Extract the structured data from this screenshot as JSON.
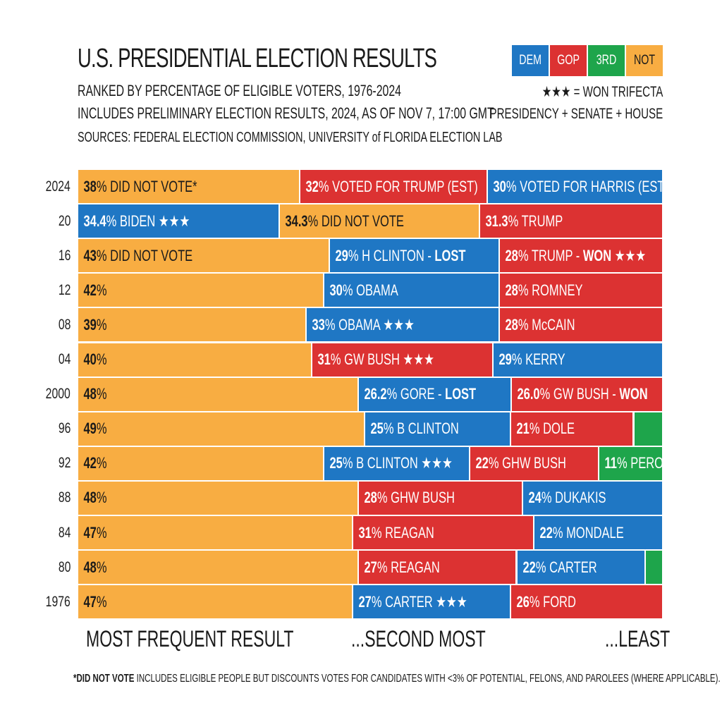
{
  "header": {
    "title": "U.S. PRESIDENTIAL ELECTION RESULTS",
    "subtitle1": "RANKED BY PERCENTAGE OF ELIGIBLE VOTERS, 1976-2024",
    "subtitle2": "INCLUDES PRELIMINARY ELECTION RESULTS, 2024, AS OF NOV 7, 17:00 GMT",
    "sources": "SOURCES: FEDERAL ELECTION COMMISSION, UNIVERSITY of FLORIDA ELECTION LAB"
  },
  "legend": {
    "items": [
      {
        "label": "DEM",
        "color": "#1f77c4"
      },
      {
        "label": "GOP",
        "color": "#dc3232"
      },
      {
        "label": "3RD",
        "color": "#1ea54b"
      },
      {
        "label": "NOT",
        "color": "#f8ad42"
      }
    ],
    "trifecta_line1": "★★★ = WON TRIFECTA",
    "trifecta_line2": "PRESIDENCY + SENATE + HOUSE"
  },
  "colors": {
    "DEM": "#1f77c4",
    "GOP": "#dc3232",
    "3RD": "#1ea54b",
    "NOT": "#f8ad42"
  },
  "chart_data": {
    "type": "bar",
    "orientation": "horizontal-stacked",
    "rows": [
      {
        "year": "2024",
        "segments": [
          {
            "party": "NOT",
            "value": 38,
            "pct": "38",
            "label": "% DID NOT VOTE*"
          },
          {
            "party": "GOP",
            "value": 32,
            "pct": "32",
            "label": "% VOTED FOR TRUMP (EST)"
          },
          {
            "party": "DEM",
            "value": 30,
            "pct": "30",
            "label": "% VOTED FOR HARRIS (EST)"
          }
        ]
      },
      {
        "year": "20",
        "segments": [
          {
            "party": "DEM",
            "value": 34.4,
            "pct": "34.4",
            "label": "% BIDEN ★★★"
          },
          {
            "party": "NOT",
            "value": 34.3,
            "pct": "34.3",
            "label": "% DID NOT VOTE"
          },
          {
            "party": "GOP",
            "value": 31.3,
            "pct": "31.3",
            "label": "% TRUMP"
          }
        ]
      },
      {
        "year": "16",
        "segments": [
          {
            "party": "NOT",
            "value": 43,
            "pct": "43",
            "label": "% DID NOT VOTE"
          },
          {
            "party": "DEM",
            "value": 29,
            "pct": "29",
            "label": "% H CLINTON - ",
            "bold": "LOST"
          },
          {
            "party": "GOP",
            "value": 28,
            "pct": "28",
            "label": "% TRUMP - ",
            "bold": "WON",
            "after": " ★★★"
          }
        ]
      },
      {
        "year": "12",
        "segments": [
          {
            "party": "NOT",
            "value": 42,
            "pct": "42",
            "label": "%"
          },
          {
            "party": "DEM",
            "value": 30,
            "pct": "30",
            "label": "% OBAMA"
          },
          {
            "party": "GOP",
            "value": 28,
            "pct": "28",
            "label": "% ROMNEY"
          }
        ]
      },
      {
        "year": "08",
        "segments": [
          {
            "party": "NOT",
            "value": 39,
            "pct": "39",
            "label": "%"
          },
          {
            "party": "DEM",
            "value": 33,
            "pct": "33",
            "label": "% OBAMA ★★★"
          },
          {
            "party": "GOP",
            "value": 28,
            "pct": "28",
            "label": "% McCAIN"
          }
        ]
      },
      {
        "year": "04",
        "segments": [
          {
            "party": "NOT",
            "value": 40,
            "pct": "40",
            "label": "%"
          },
          {
            "party": "GOP",
            "value": 31,
            "pct": "31",
            "label": "% GW BUSH ★★★"
          },
          {
            "party": "DEM",
            "value": 29,
            "pct": "29",
            "label": "% KERRY"
          }
        ]
      },
      {
        "year": "2000",
        "segments": [
          {
            "party": "NOT",
            "value": 48,
            "pct": "48",
            "label": "%"
          },
          {
            "party": "DEM",
            "value": 26.2,
            "pct": "26.2",
            "label": "% GORE - ",
            "bold": "LOST"
          },
          {
            "party": "GOP",
            "value": 26.0,
            "pct": "26.0",
            "label": "% GW BUSH - ",
            "bold": "WON"
          }
        ]
      },
      {
        "year": "96",
        "segments": [
          {
            "party": "NOT",
            "value": 49,
            "pct": "49",
            "label": "%"
          },
          {
            "party": "DEM",
            "value": 25,
            "pct": "25",
            "label": "% B CLINTON"
          },
          {
            "party": "GOP",
            "value": 21,
            "pct": "21",
            "label": "% DOLE"
          },
          {
            "party": "3RD",
            "value": 5
          }
        ]
      },
      {
        "year": "92",
        "segments": [
          {
            "party": "NOT",
            "value": 42,
            "pct": "42",
            "label": "%"
          },
          {
            "party": "DEM",
            "value": 25,
            "pct": "25",
            "label": "% B CLINTON ★★★"
          },
          {
            "party": "GOP",
            "value": 22,
            "pct": "22",
            "label": "% GHW BUSH"
          },
          {
            "party": "3RD",
            "value": 11,
            "pct": "11",
            "label": "% PEROT"
          }
        ]
      },
      {
        "year": "88",
        "segments": [
          {
            "party": "NOT",
            "value": 48,
            "pct": "48",
            "label": "%"
          },
          {
            "party": "GOP",
            "value": 28,
            "pct": "28",
            "label": "% GHW BUSH"
          },
          {
            "party": "DEM",
            "value": 24,
            "pct": "24",
            "label": "% DUKAKIS"
          }
        ]
      },
      {
        "year": "84",
        "segments": [
          {
            "party": "NOT",
            "value": 47,
            "pct": "47",
            "label": "%"
          },
          {
            "party": "GOP",
            "value": 31,
            "pct": "31",
            "label": "% REAGAN"
          },
          {
            "party": "DEM",
            "value": 22,
            "pct": "22",
            "label": "% MONDALE"
          }
        ]
      },
      {
        "year": "80",
        "segments": [
          {
            "party": "NOT",
            "value": 48,
            "pct": "48",
            "label": "%"
          },
          {
            "party": "GOP",
            "value": 27,
            "pct": "27",
            "label": "% REAGAN"
          },
          {
            "party": "DEM",
            "value": 22,
            "pct": "22",
            "label": "% CARTER"
          },
          {
            "party": "3RD",
            "value": 3
          }
        ]
      },
      {
        "year": "1976",
        "segments": [
          {
            "party": "NOT",
            "value": 47,
            "pct": "47",
            "label": "%"
          },
          {
            "party": "DEM",
            "value": 27,
            "pct": "27",
            "label": "% CARTER ★★★"
          },
          {
            "party": "GOP",
            "value": 26,
            "pct": "26",
            "label": "% FORD"
          }
        ]
      }
    ]
  },
  "bottom_labels": {
    "most": "MOST FREQUENT RESULT",
    "second": "...SECOND MOST",
    "least": "...LEAST"
  },
  "footnote": {
    "bold": "*DID NOT VOTE",
    "text": " INCLUDES ELIGIBLE PEOPLE BUT DISCOUNTS VOTES FOR CANDIDATES WITH <3% OF POTENTIAL, FELONS, AND PAROLEES (WHERE APPLICABLE)."
  }
}
